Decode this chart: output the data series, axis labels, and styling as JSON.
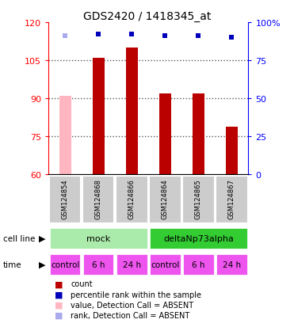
{
  "title": "GDS2420 / 1418345_at",
  "samples": [
    "GSM124854",
    "GSM124868",
    "GSM124866",
    "GSM124864",
    "GSM124865",
    "GSM124867"
  ],
  "counts": [
    null,
    106,
    110,
    92,
    92,
    79
  ],
  "counts_absent": [
    91,
    null,
    null,
    null,
    null,
    null
  ],
  "percentile_ranks": [
    null,
    92,
    92,
    91,
    91,
    90
  ],
  "percentile_ranks_absent": [
    91,
    null,
    null,
    null,
    null,
    null
  ],
  "is_absent_count": [
    true,
    false,
    false,
    false,
    false,
    false
  ],
  "is_absent_rank": [
    true,
    false,
    false,
    false,
    false,
    false
  ],
  "cell_line_groups": [
    {
      "label": "mock",
      "start": 0,
      "end": 3,
      "color": "#AAEAAA"
    },
    {
      "label": "deltaNp73alpha",
      "start": 3,
      "end": 6,
      "color": "#33CC33"
    }
  ],
  "time_labels": [
    "control",
    "6 h",
    "24 h",
    "control",
    "6 h",
    "24 h"
  ],
  "ylim_left": [
    60,
    120
  ],
  "ylim_right": [
    0,
    100
  ],
  "yticks_left": [
    60,
    75,
    90,
    105,
    120
  ],
  "yticks_right": [
    0,
    25,
    50,
    75,
    100
  ],
  "bar_color_red": "#BB0000",
  "bar_color_pink": "#FFB6C1",
  "rank_color_blue": "#0000BB",
  "rank_color_lightblue": "#AAAAEE",
  "grid_color": "#888888",
  "sample_bg": "#CCCCCC",
  "time_color": "#EE55EE"
}
